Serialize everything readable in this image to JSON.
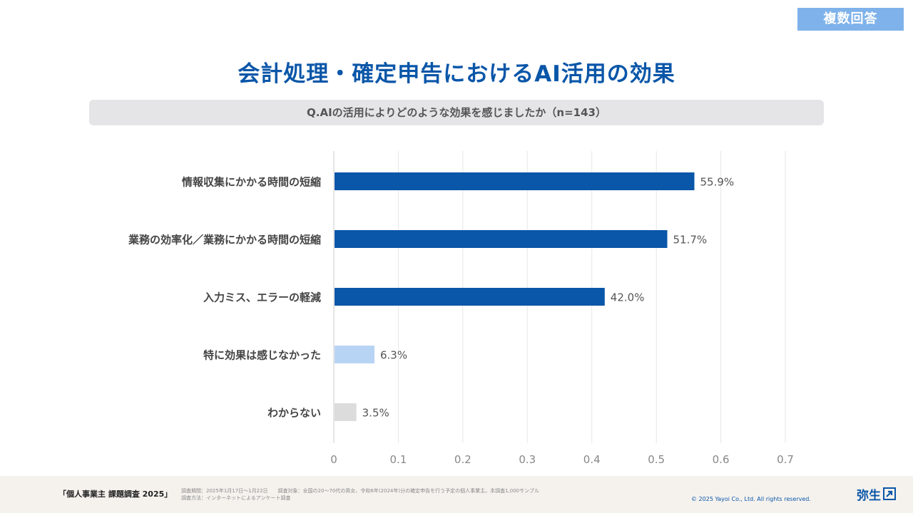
{
  "badge": "複数回答",
  "title": "会計処理・確定申告におけるAI活用の効果",
  "question": "Q.AIの活用によりどのような効果を感じましたか（n=143）",
  "chart_data": {
    "type": "bar",
    "orientation": "horizontal",
    "categories": [
      "情報収集にかかる時間の短縮",
      "業務の効率化／業務にかかる時間の短縮",
      "入力ミス、エラーの軽減",
      "特に効果は感じなかった",
      "わからない"
    ],
    "values": [
      0.559,
      0.517,
      0.42,
      0.063,
      0.035
    ],
    "value_labels": [
      "55.9%",
      "51.7%",
      "42.0%",
      "6.3%",
      "3.5%"
    ],
    "bar_colors": [
      "#0a56a8",
      "#0a56a8",
      "#0a56a8",
      "#b8d4f4",
      "#dcdcdc"
    ],
    "xlim": [
      0,
      0.7
    ],
    "xticks": [
      0,
      0.1,
      0.2,
      0.3,
      0.4,
      0.5,
      0.6,
      0.7
    ],
    "xtick_labels": [
      "0",
      "0.1",
      "0.2",
      "0.3",
      "0.4",
      "0.5",
      "0.6",
      "0.7"
    ],
    "grid": true
  },
  "footer": {
    "survey_name": "「個人事業主 課題調査 2025」",
    "period": "調査期間：2025年1月17日～1月22日",
    "target": "調査対象：全国の20～70代の男女、令和6年(2024年)分の確定申告を行う予定の個人事業主。本調査1,000サンプル",
    "method": "調査方法：インターネットによるアンケート調査",
    "copyright": "© 2025 Yayoi Co., Ltd.  All rights reserved.",
    "logo_text": "弥生"
  }
}
